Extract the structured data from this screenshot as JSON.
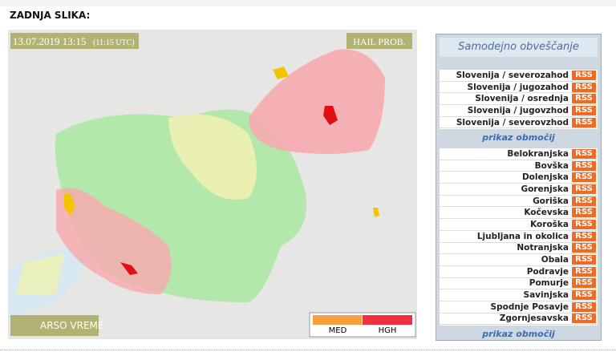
{
  "header": {
    "title": "ZADNJA SLIKA:"
  },
  "map": {
    "timestamp": "13.07.2019 13:15",
    "utc": "(11:15 UTC)",
    "product": "HAIL PROB.",
    "brand": "ARSO VREME",
    "legend": [
      "MED",
      "HGH"
    ]
  },
  "panel": {
    "title": "Samodejno obveščanje",
    "groups": [
      {
        "rows": [
          {
            "name": "Slovenija / severozahod",
            "button": "RSS"
          },
          {
            "name": "Slovenija / jugozahod",
            "button": "RSS"
          },
          {
            "name": "Slovenija / osrednja",
            "button": "RSS"
          },
          {
            "name": "Slovenija / jugovzhod",
            "button": "RSS"
          },
          {
            "name": "Slovenija / severovzhod",
            "button": "RSS"
          }
        ],
        "link": "prikaz območij"
      },
      {
        "rows": [
          {
            "name": "Belokranjska",
            "button": "RSS"
          },
          {
            "name": "Bovška",
            "button": "RSS"
          },
          {
            "name": "Dolenjska",
            "button": "RSS"
          },
          {
            "name": "Gorenjska",
            "button": "RSS"
          },
          {
            "name": "Goriška",
            "button": "RSS"
          },
          {
            "name": "Kočevska",
            "button": "RSS"
          },
          {
            "name": "Koroška",
            "button": "RSS"
          },
          {
            "name": "Ljubljana in okolica",
            "button": "RSS"
          },
          {
            "name": "Notranjska",
            "button": "RSS"
          },
          {
            "name": "Obala",
            "button": "RSS"
          },
          {
            "name": "Podravje",
            "button": "RSS"
          },
          {
            "name": "Pomurje",
            "button": "RSS"
          },
          {
            "name": "Savinjska",
            "button": "RSS"
          },
          {
            "name": "Spodnje Posavje",
            "button": "RSS"
          },
          {
            "name": "Zgornjesavska",
            "button": "RSS"
          }
        ],
        "link": "prikaz območij"
      }
    ]
  }
}
